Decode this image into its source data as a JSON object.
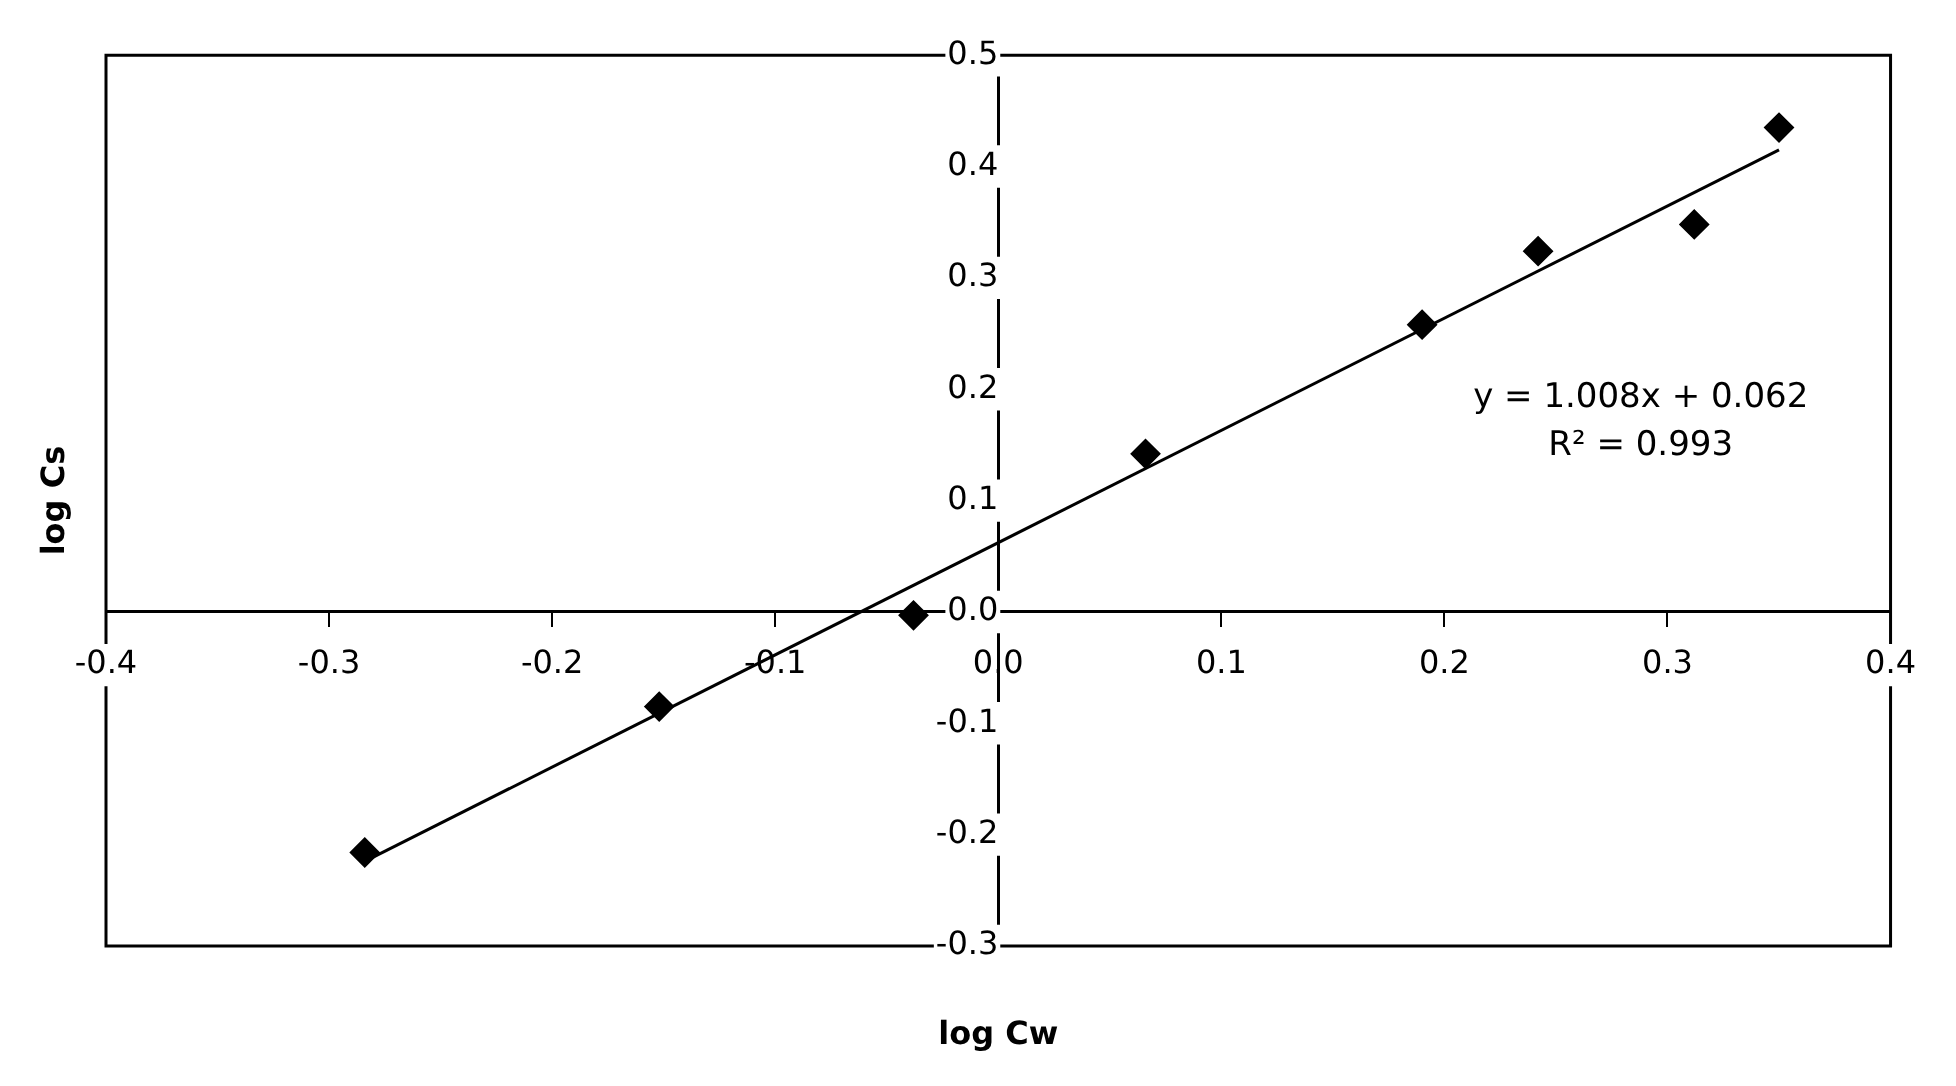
{
  "chart_data": {
    "type": "scatter",
    "xlabel": "log Cw",
    "ylabel": "log Cs",
    "xlim": [
      -0.4,
      0.4
    ],
    "xticks": [
      -0.4,
      -0.3,
      -0.2,
      -0.1,
      {
        "value": 0,
        "label": "0.0"
      },
      0.1,
      0.2,
      0.3,
      0.4
    ],
    "ylim": [
      -0.3,
      0.5
    ],
    "yticks": [
      -0.3,
      -0.2,
      -0.1,
      {
        "value": 0,
        "label": "0.0"
      },
      0.1,
      0.2,
      0.3,
      0.4,
      0.5
    ],
    "grid": false,
    "legend": false,
    "marker": "diamond",
    "series": [
      {
        "color": "#000000",
        "x": [
          -0.284,
          -0.152,
          -0.038,
          0.066,
          0.19,
          0.242,
          0.312,
          0.35
        ],
        "values": [
          -0.216,
          -0.085,
          -0.003,
          0.142,
          0.258,
          0.324,
          0.348,
          0.435
        ]
      },
      {
        "type": "line",
        "color": "#000000",
        "marker": "none",
        "x": [
          -0.284,
          0.35
        ],
        "values": [
          -0.224,
          0.415
        ]
      }
    ],
    "annotations": [
      "y = 1.008x + 0.062",
      "R² = 0.993"
    ]
  }
}
